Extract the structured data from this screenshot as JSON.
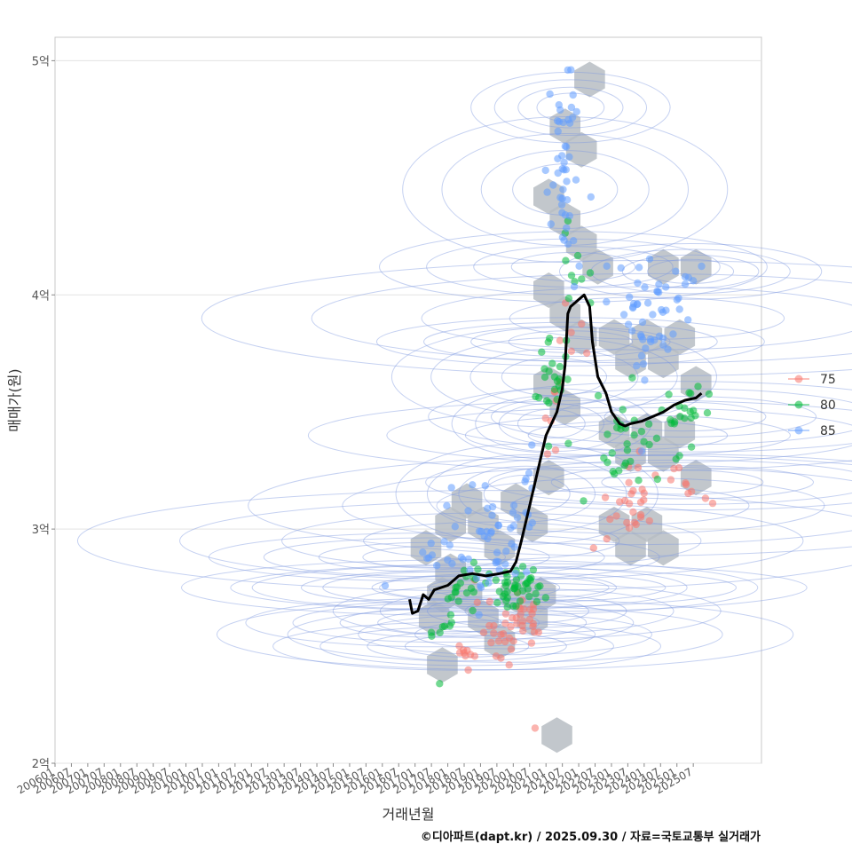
{
  "chart_data": {
    "type": "scatter",
    "title": "",
    "xlabel": "거래년월",
    "ylabel": "매매가(원)",
    "caption": "©디아파트(dapt.kr) / 2025.09.30 / 자료=국토교통부 실거래가",
    "x_ticks": [
      "200601",
      "200607",
      "200701",
      "200707",
      "200801",
      "200807",
      "200901",
      "200907",
      "201001",
      "201007",
      "201101",
      "201107",
      "201201",
      "201207",
      "201301",
      "201307",
      "201401",
      "201407",
      "201501",
      "201507",
      "201601",
      "201607",
      "201701",
      "201707",
      "201801",
      "201807",
      "201901",
      "201907",
      "202001",
      "202007",
      "202101",
      "202107",
      "202201",
      "202207",
      "202301",
      "202307",
      "202401",
      "202407",
      "202501",
      "202507"
    ],
    "y_ticks": [
      {
        "value": 2.0,
        "label": "2억"
      },
      {
        "value": 3.0,
        "label": "3억"
      },
      {
        "value": 4.0,
        "label": "4억"
      },
      {
        "value": 5.0,
        "label": "5억"
      }
    ],
    "xlim": [
      "2006-01",
      "2027-08"
    ],
    "ylim": [
      2.0,
      5.1
    ],
    "grid": true,
    "legend_position": "right",
    "series": [
      {
        "name": "75",
        "color": "#f8766d",
        "clusters": [
          {
            "x": "2018-08",
            "y": 2.5,
            "sx": 0.3,
            "sy": 0.05,
            "n": 10
          },
          {
            "x": "2019-10",
            "y": 2.55,
            "sx": 0.45,
            "sy": 0.08,
            "n": 26
          },
          {
            "x": "2020-06",
            "y": 2.65,
            "sx": 0.3,
            "sy": 0.06,
            "n": 16
          },
          {
            "x": "2021-03",
            "y": 3.45,
            "sx": 0.15,
            "sy": 0.08,
            "n": 8
          },
          {
            "x": "2021-10",
            "y": 3.8,
            "sx": 0.3,
            "sy": 0.05,
            "n": 6
          },
          {
            "x": "2023-08",
            "y": 3.1,
            "sx": 0.6,
            "sy": 0.12,
            "n": 28
          },
          {
            "x": "2025-03",
            "y": 3.2,
            "sx": 0.4,
            "sy": 0.06,
            "n": 8
          }
        ],
        "points": [
          {
            "x": "2020-09",
            "y": 2.15
          }
        ]
      },
      {
        "name": "80",
        "color": "#00ba38",
        "clusters": [
          {
            "x": "2017-10",
            "y": 2.6,
            "sx": 0.3,
            "sy": 0.05,
            "n": 10
          },
          {
            "x": "2018-09",
            "y": 2.75,
            "sx": 0.45,
            "sy": 0.06,
            "n": 16
          },
          {
            "x": "2020-03",
            "y": 2.75,
            "sx": 0.45,
            "sy": 0.05,
            "n": 44
          },
          {
            "x": "2021-04",
            "y": 3.65,
            "sx": 0.25,
            "sy": 0.12,
            "n": 24
          },
          {
            "x": "2021-11",
            "y": 4.12,
            "sx": 0.3,
            "sy": 0.08,
            "n": 10
          },
          {
            "x": "2023-07",
            "y": 3.4,
            "sx": 0.5,
            "sy": 0.08,
            "n": 30
          },
          {
            "x": "2025-04",
            "y": 3.48,
            "sx": 0.4,
            "sy": 0.08,
            "n": 22
          }
        ],
        "points": [
          {
            "x": "2017-10",
            "y": 2.34
          }
        ]
      },
      {
        "name": "85",
        "color": "#619cff",
        "clusters": [
          {
            "x": "2017-08",
            "y": 2.88,
            "sx": 0.35,
            "sy": 0.05,
            "n": 10
          },
          {
            "x": "2019-05",
            "y": 2.95,
            "sx": 0.65,
            "sy": 0.12,
            "n": 46
          },
          {
            "x": "2020-06",
            "y": 3.15,
            "sx": 0.2,
            "sy": 0.12,
            "n": 8
          },
          {
            "x": "2021-08",
            "y": 4.45,
            "sx": 0.25,
            "sy": 0.18,
            "n": 40
          },
          {
            "x": "2021-10",
            "y": 4.8,
            "sx": 0.15,
            "sy": 0.08,
            "n": 6
          },
          {
            "x": "2024-02",
            "y": 3.9,
            "sx": 0.7,
            "sy": 0.14,
            "n": 48
          },
          {
            "x": "2025-06",
            "y": 4.1,
            "sx": 0.2,
            "sy": 0.06,
            "n": 6
          }
        ],
        "points": [
          {
            "x": "2021-09",
            "y": 4.96
          }
        ]
      }
    ],
    "trend_line": {
      "color": "#000000",
      "points": [
        {
          "x": "2016-11",
          "y": 2.7
        },
        {
          "x": "2016-12",
          "y": 2.64
        },
        {
          "x": "2017-02",
          "y": 2.65
        },
        {
          "x": "2017-04",
          "y": 2.72
        },
        {
          "x": "2017-06",
          "y": 2.7
        },
        {
          "x": "2017-08",
          "y": 2.74
        },
        {
          "x": "2018-01",
          "y": 2.76
        },
        {
          "x": "2018-05",
          "y": 2.8
        },
        {
          "x": "2018-10",
          "y": 2.81
        },
        {
          "x": "2019-03",
          "y": 2.8
        },
        {
          "x": "2019-08",
          "y": 2.81
        },
        {
          "x": "2019-12",
          "y": 2.82
        },
        {
          "x": "2020-02",
          "y": 2.86
        },
        {
          "x": "2020-04",
          "y": 2.95
        },
        {
          "x": "2020-07",
          "y": 3.1
        },
        {
          "x": "2020-10",
          "y": 3.25
        },
        {
          "x": "2021-01",
          "y": 3.4
        },
        {
          "x": "2021-05",
          "y": 3.5
        },
        {
          "x": "2021-07",
          "y": 3.6
        },
        {
          "x": "2021-08",
          "y": 3.7
        },
        {
          "x": "2021-09",
          "y": 3.92
        },
        {
          "x": "2021-10",
          "y": 3.95
        },
        {
          "x": "2022-01",
          "y": 3.98
        },
        {
          "x": "2022-03",
          "y": 4.0
        },
        {
          "x": "2022-05",
          "y": 3.95
        },
        {
          "x": "2022-06",
          "y": 3.8
        },
        {
          "x": "2022-08",
          "y": 3.65
        },
        {
          "x": "2022-11",
          "y": 3.58
        },
        {
          "x": "2023-01",
          "y": 3.5
        },
        {
          "x": "2023-04",
          "y": 3.45
        },
        {
          "x": "2023-06",
          "y": 3.44
        },
        {
          "x": "2023-08",
          "y": 3.45
        },
        {
          "x": "2023-12",
          "y": 3.46
        },
        {
          "x": "2024-04",
          "y": 3.48
        },
        {
          "x": "2024-08",
          "y": 3.5
        },
        {
          "x": "2024-12",
          "y": 3.53
        },
        {
          "x": "2025-04",
          "y": 3.55
        },
        {
          "x": "2025-08",
          "y": 3.56
        },
        {
          "x": "2025-10",
          "y": 3.58
        }
      ]
    },
    "hex_density": {
      "color": "#b7bdc3",
      "cells": [
        {
          "x": "2017-05",
          "y": 2.92
        },
        {
          "x": "2017-08",
          "y": 2.62
        },
        {
          "x": "2017-11",
          "y": 2.42
        },
        {
          "x": "2017-11",
          "y": 2.72
        },
        {
          "x": "2018-02",
          "y": 2.82
        },
        {
          "x": "2018-02",
          "y": 3.02
        },
        {
          "x": "2018-08",
          "y": 3.12
        },
        {
          "x": "2018-08",
          "y": 2.72
        },
        {
          "x": "2019-02",
          "y": 2.62
        },
        {
          "x": "2019-02",
          "y": 3.02
        },
        {
          "x": "2019-08",
          "y": 2.52
        },
        {
          "x": "2019-08",
          "y": 2.92
        },
        {
          "x": "2020-02",
          "y": 2.72
        },
        {
          "x": "2020-02",
          "y": 3.12
        },
        {
          "x": "2020-08",
          "y": 2.62
        },
        {
          "x": "2020-08",
          "y": 3.02
        },
        {
          "x": "2020-11",
          "y": 2.72
        },
        {
          "x": "2021-02",
          "y": 3.22
        },
        {
          "x": "2021-02",
          "y": 3.62
        },
        {
          "x": "2021-02",
          "y": 4.02
        },
        {
          "x": "2021-02",
          "y": 4.42
        },
        {
          "x": "2021-08",
          "y": 3.52
        },
        {
          "x": "2021-08",
          "y": 3.92
        },
        {
          "x": "2021-08",
          "y": 4.32
        },
        {
          "x": "2021-08",
          "y": 4.72
        },
        {
          "x": "2022-02",
          "y": 4.22
        },
        {
          "x": "2022-02",
          "y": 4.62
        },
        {
          "x": "2022-02",
          "y": 3.82
        },
        {
          "x": "2022-08",
          "y": 4.12
        },
        {
          "x": "2023-02",
          "y": 3.02
        },
        {
          "x": "2023-02",
          "y": 3.42
        },
        {
          "x": "2023-02",
          "y": 3.82
        },
        {
          "x": "2023-08",
          "y": 2.92
        },
        {
          "x": "2023-08",
          "y": 3.32
        },
        {
          "x": "2023-08",
          "y": 3.72
        },
        {
          "x": "2024-02",
          "y": 3.02
        },
        {
          "x": "2024-02",
          "y": 3.42
        },
        {
          "x": "2024-02",
          "y": 3.82
        },
        {
          "x": "2024-08",
          "y": 2.92
        },
        {
          "x": "2024-08",
          "y": 3.32
        },
        {
          "x": "2024-08",
          "y": 3.72
        },
        {
          "x": "2024-08",
          "y": 4.12
        },
        {
          "x": "2025-02",
          "y": 3.42
        },
        {
          "x": "2025-02",
          "y": 3.82
        },
        {
          "x": "2025-08",
          "y": 3.62
        },
        {
          "x": "2025-08",
          "y": 4.12
        },
        {
          "x": "2025-08",
          "y": 3.22
        },
        {
          "x": "2021-05",
          "y": 2.12
        },
        {
          "x": "2022-05",
          "y": 4.92
        }
      ]
    }
  }
}
